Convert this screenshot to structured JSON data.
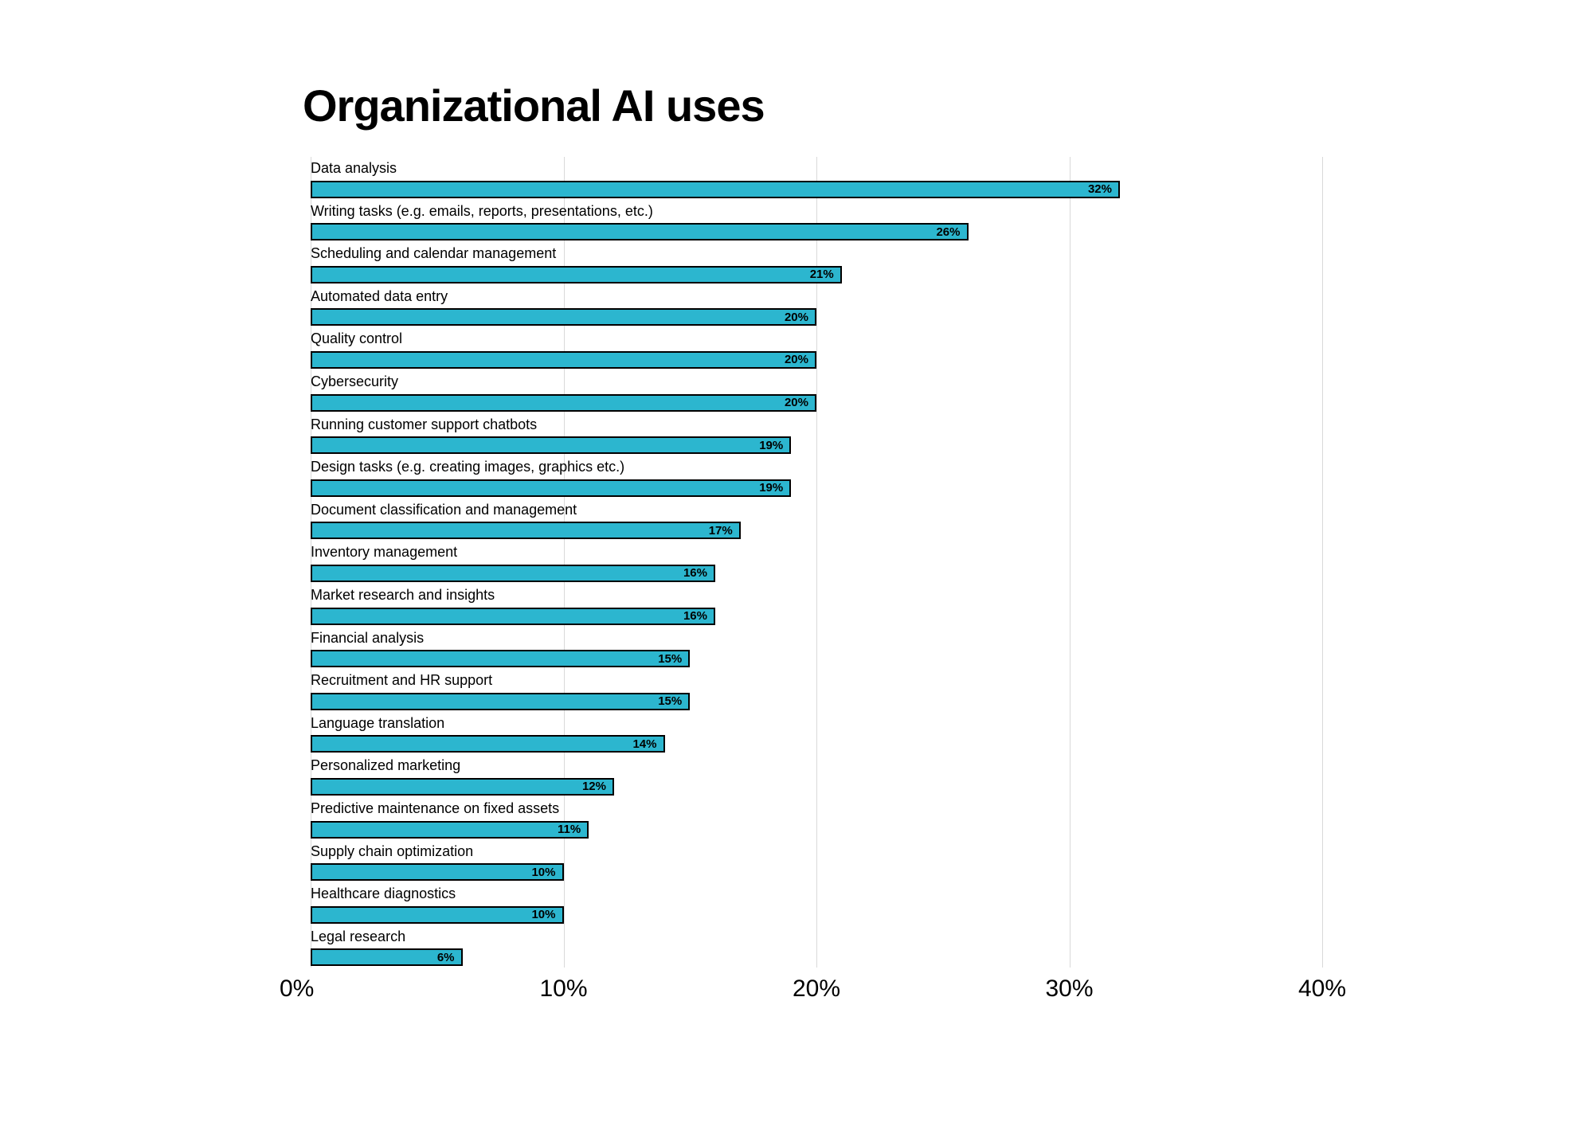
{
  "chart": {
    "type": "bar",
    "orientation": "horizontal",
    "title": "Organizational AI uses",
    "title_fontsize": 56,
    "title_fontweight": 800,
    "title_color": "#000000",
    "background_color": "#ffffff",
    "bar_color": "#2cb6cf",
    "bar_border_color": "#000000",
    "bar_border_width": 2,
    "grid_color": "#d9d9d9",
    "grid_major_color": "#d9d9d9",
    "label_color": "#000000",
    "label_fontsize": 18,
    "label_fontweight": 500,
    "value_fontsize": 15,
    "value_fontweight": 800,
    "value_color": "#000000",
    "axis_fontsize": 30,
    "axis_fontweight": 400,
    "axis_color": "#000000",
    "xmin": 0,
    "xmax": 40,
    "x_ticks": [
      {
        "value": 0,
        "label": "0%"
      },
      {
        "value": 10,
        "label": "10%"
      },
      {
        "value": 20,
        "label": "20%"
      },
      {
        "value": 30,
        "label": "30%"
      },
      {
        "value": 40,
        "label": "40%"
      }
    ],
    "bars": [
      {
        "label": "Data analysis",
        "value": 32,
        "value_label": "32%"
      },
      {
        "label": "Writing tasks (e.g. emails, reports, presentations, etc.)",
        "value": 26,
        "value_label": "26%"
      },
      {
        "label": "Scheduling and calendar management",
        "value": 21,
        "value_label": "21%"
      },
      {
        "label": "Automated data entry",
        "value": 20,
        "value_label": "20%"
      },
      {
        "label": "Quality control",
        "value": 20,
        "value_label": "20%"
      },
      {
        "label": "Cybersecurity",
        "value": 20,
        "value_label": "20%"
      },
      {
        "label": "Running customer support chatbots",
        "value": 19,
        "value_label": "19%"
      },
      {
        "label": "Design tasks (e.g. creating images, graphics etc.)",
        "value": 19,
        "value_label": "19%"
      },
      {
        "label": "Document classification and management",
        "value": 17,
        "value_label": "17%"
      },
      {
        "label": "Inventory management",
        "value": 16,
        "value_label": "16%"
      },
      {
        "label": "Market research and insights",
        "value": 16,
        "value_label": "16%"
      },
      {
        "label": "Financial analysis",
        "value": 15,
        "value_label": "15%"
      },
      {
        "label": "Recruitment and HR support",
        "value": 15,
        "value_label": "15%"
      },
      {
        "label": "Language translation",
        "value": 14,
        "value_label": "14%"
      },
      {
        "label": "Personalized marketing",
        "value": 12,
        "value_label": "12%"
      },
      {
        "label": "Predictive maintenance on fixed assets",
        "value": 11,
        "value_label": "11%"
      },
      {
        "label": "Supply chain optimization",
        "value": 10,
        "value_label": "10%"
      },
      {
        "label": "Healthcare diagnostics",
        "value": 10,
        "value_label": "10%"
      },
      {
        "label": "Legal research",
        "value": 6,
        "value_label": "6%"
      }
    ]
  }
}
